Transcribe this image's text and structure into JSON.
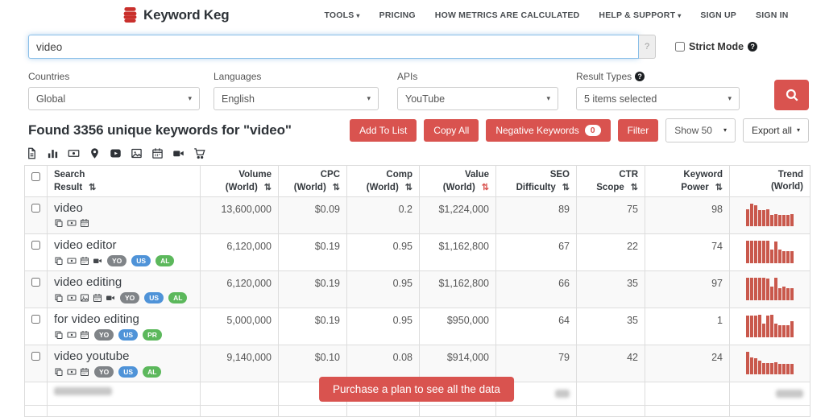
{
  "brand": {
    "name": "Keyword Keg"
  },
  "nav": {
    "items": [
      {
        "label": "TOOLS",
        "caret": true
      },
      {
        "label": "PRICING",
        "caret": false
      },
      {
        "label": "HOW METRICS ARE CALCULATED",
        "caret": false
      },
      {
        "label": "HELP & SUPPORT",
        "caret": true
      },
      {
        "label": "SIGN UP",
        "caret": false
      },
      {
        "label": "SIGN IN",
        "caret": false
      }
    ]
  },
  "search": {
    "value": "video",
    "addon_label": "?",
    "strict_mode_label": "Strict Mode"
  },
  "filters": {
    "items": [
      {
        "label": "Countries",
        "value": "Global",
        "help": false
      },
      {
        "label": "Languages",
        "value": "English",
        "help": false
      },
      {
        "label": "APIs",
        "value": "YouTube",
        "help": false
      },
      {
        "label": "Result Types",
        "value": "5 items selected",
        "help": true
      }
    ]
  },
  "results": {
    "heading": "Found 3356 unique keywords for \"video\""
  },
  "actions": {
    "add_to_list": "Add To List",
    "copy_all": "Copy All",
    "negative_keywords": "Negative Keywords",
    "negative_count": "0",
    "filter": "Filter",
    "show": "Show 50",
    "export": "Export all"
  },
  "toolbar_icons": [
    "file-text",
    "bar-chart",
    "banknote",
    "map-pin",
    "youtube-play",
    "image",
    "calendar",
    "video-camera",
    "shopping-cart"
  ],
  "table": {
    "columns": [
      {
        "key": "search-result",
        "label1": "Search",
        "label2": "Result",
        "sortable": true,
        "sorted": false,
        "align": "left"
      },
      {
        "key": "volume",
        "label1": "Volume",
        "label2": "(World)",
        "sortable": true,
        "sorted": false,
        "align": "right"
      },
      {
        "key": "cpc",
        "label1": "CPC",
        "label2": "(World)",
        "sortable": true,
        "sorted": false,
        "align": "right"
      },
      {
        "key": "comp",
        "label1": "Comp",
        "label2": "(World)",
        "sortable": true,
        "sorted": false,
        "align": "right"
      },
      {
        "key": "value",
        "label1": "Value",
        "label2": "(World)",
        "sortable": true,
        "sorted": true,
        "align": "right"
      },
      {
        "key": "seo-difficulty",
        "label1": "SEO",
        "label2": "Difficulty",
        "sortable": true,
        "sorted": false,
        "align": "right"
      },
      {
        "key": "ctr-scope",
        "label1": "CTR",
        "label2": "Scope",
        "sortable": true,
        "sorted": false,
        "align": "right"
      },
      {
        "key": "keyword-power",
        "label1": "Keyword",
        "label2": "Power",
        "sortable": true,
        "sorted": false,
        "align": "right"
      },
      {
        "key": "trend",
        "label1": "Trend",
        "label2": "(World)",
        "sortable": false,
        "sorted": false,
        "align": "right"
      }
    ],
    "rows": [
      {
        "keyword": "video",
        "icons": [
          "copy",
          "banknote",
          "calendar"
        ],
        "badges": [],
        "volume": "13,600,000",
        "cpc": "$0.09",
        "comp": "0.2",
        "value": "$1,224,000",
        "seo": "89",
        "ctr": "75",
        "power": "98",
        "trend": [
          75,
          100,
          92,
          72,
          72,
          75,
          50,
          55,
          50,
          50,
          50,
          52
        ]
      },
      {
        "keyword": "video editor",
        "icons": [
          "copy",
          "banknote",
          "calendar",
          "video-camera"
        ],
        "badges": [
          {
            "label": "YO",
            "type": "gray"
          },
          {
            "label": "US",
            "type": "blue"
          },
          {
            "label": "AL",
            "type": "green"
          }
        ],
        "volume": "6,120,000",
        "cpc": "$0.19",
        "comp": "0.95",
        "value": "$1,162,800",
        "seo": "67",
        "ctr": "22",
        "power": "74",
        "trend": [
          100,
          100,
          100,
          100,
          100,
          100,
          62,
          95,
          60,
          55,
          55,
          55
        ]
      },
      {
        "keyword": "video editing",
        "icons": [
          "copy",
          "banknote",
          "image",
          "calendar",
          "video-camera"
        ],
        "badges": [
          {
            "label": "YO",
            "type": "gray"
          },
          {
            "label": "US",
            "type": "blue"
          },
          {
            "label": "AL",
            "type": "green"
          }
        ],
        "volume": "6,120,000",
        "cpc": "$0.19",
        "comp": "0.95",
        "value": "$1,162,800",
        "seo": "66",
        "ctr": "35",
        "power": "97",
        "trend": [
          100,
          100,
          100,
          100,
          100,
          95,
          60,
          100,
          55,
          60,
          55,
          55
        ]
      },
      {
        "keyword": "for video editing",
        "icons": [
          "copy",
          "banknote",
          "calendar"
        ],
        "badges": [
          {
            "label": "YO",
            "type": "gray"
          },
          {
            "label": "US",
            "type": "blue"
          },
          {
            "label": "PR",
            "type": "green"
          }
        ],
        "volume": "5,000,000",
        "cpc": "$0.19",
        "comp": "0.95",
        "value": "$950,000",
        "seo": "64",
        "ctr": "35",
        "power": "1",
        "trend": [
          95,
          95,
          95,
          100,
          60,
          95,
          100,
          60,
          55,
          55,
          55,
          70
        ]
      },
      {
        "keyword": "video youtube",
        "icons": [
          "copy",
          "banknote",
          "calendar"
        ],
        "badges": [
          {
            "label": "YO",
            "type": "gray"
          },
          {
            "label": "US",
            "type": "blue"
          },
          {
            "label": "AL",
            "type": "green"
          }
        ],
        "volume": "9,140,000",
        "cpc": "$0.10",
        "comp": "0.08",
        "value": "$914,000",
        "seo": "79",
        "ctr": "42",
        "power": "24",
        "trend": [
          100,
          75,
          70,
          60,
          50,
          50,
          50,
          55,
          45,
          45,
          45,
          45
        ]
      }
    ],
    "purchase_label": "Purchase a plan to see all the data"
  },
  "colors": {
    "accent_red": "#d9534f",
    "badge_gray": "#808488",
    "badge_blue": "#4f93d8",
    "badge_green": "#5cb85c",
    "trend_bar": "#c9584c"
  }
}
